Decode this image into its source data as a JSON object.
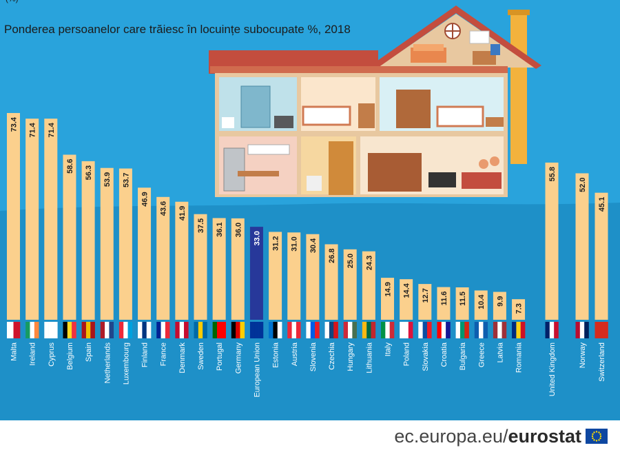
{
  "header": {
    "top_mark": "(%)",
    "title": "Ponderea persoanelor care trăiesc în locuințe subocupate %, 2018"
  },
  "footer": {
    "url": "ec.europa.eu/",
    "brand": "eurostat"
  },
  "colors": {
    "background": "#29a3dc",
    "bar": "#fbd08d",
    "eu_bar": "#27389a",
    "roof": "#c34d3e"
  },
  "chart_data": {
    "type": "bar",
    "title": "Ponderea persoanelor care trăiesc în locuințe subocupate %, 2018",
    "xlabel": "",
    "ylabel": "",
    "categories": [
      "Malta",
      "Ireland",
      "Cyprus",
      "Belgium",
      "Spain",
      "Netherlands",
      "Luxembourg",
      "Finland",
      "France",
      "Denmark",
      "Sweden",
      "Portugal",
      "Germany",
      "European Union",
      "Estonia",
      "Austria",
      "Slovenia",
      "Czechia",
      "Hungary",
      "Lithuania",
      "Italy",
      "Poland",
      "Slovakia",
      "Croatia",
      "Bulgaria",
      "Greece",
      "Latvia",
      "Romania",
      "United Kingdom",
      "Norway",
      "Switzerland"
    ],
    "values": [
      73.4,
      71.4,
      71.4,
      58.6,
      56.3,
      53.9,
      53.7,
      46.9,
      43.6,
      41.9,
      37.5,
      36.1,
      36.0,
      33.0,
      31.2,
      31.0,
      30.4,
      26.8,
      25.0,
      24.3,
      14.9,
      14.4,
      12.7,
      11.6,
      11.5,
      10.4,
      9.9,
      7.3,
      55.8,
      52.0,
      45.1
    ],
    "labels": [
      "73.4",
      "71.4",
      "71.4",
      "58.6",
      "56.3",
      "53.9",
      "53.7",
      "46.9",
      "43.6",
      "41.9",
      "37.5",
      "36.1",
      "36.0",
      "33.0",
      "31.2",
      "31.0",
      "30.4",
      "26.8",
      "25.0",
      "24.3",
      "14.9",
      "14.4",
      "12.7",
      "11.6",
      "11.5",
      "10.4",
      "9.9",
      "7.3",
      "55.8",
      "52.0",
      "45.1"
    ],
    "highlight": "European Union",
    "groups": [
      "eu",
      "eu_total",
      "eu",
      "non_eu"
    ],
    "ylim": [
      0,
      80
    ],
    "grid": false,
    "legend": "none"
  }
}
